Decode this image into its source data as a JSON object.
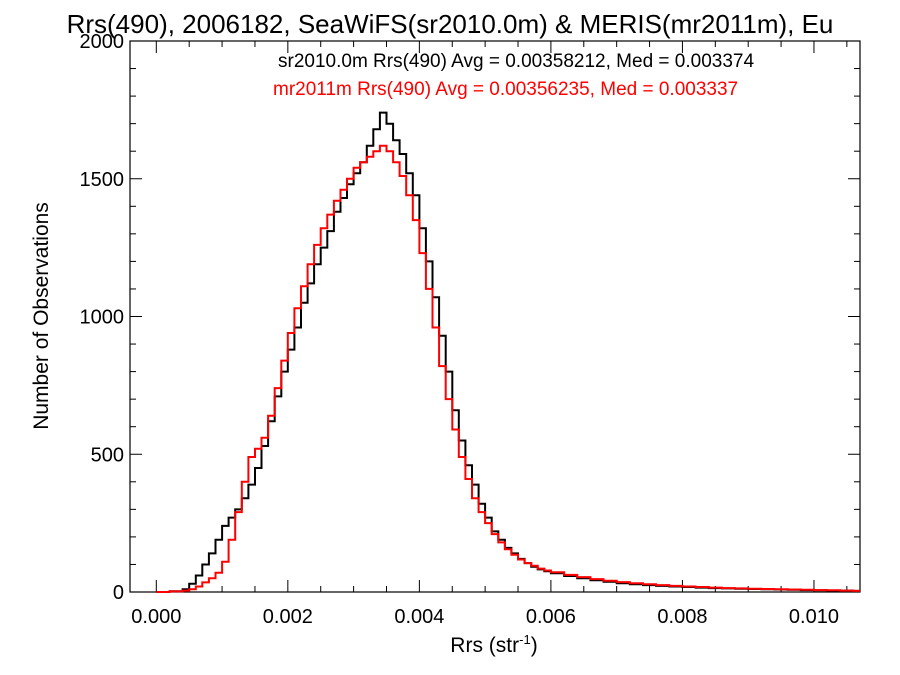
{
  "chart_data": {
    "type": "line",
    "title": "Rrs(490), 2006182, SeaWiFS(sr2010.0m) & MERIS(mr2011m), Eu",
    "xlabel_main": "Rrs (str",
    "xlabel_sup": "-1",
    "xlabel_close": ")",
    "ylabel": "Number of Observations",
    "xlim": [
      -0.0004,
      0.0107
    ],
    "ylim": [
      0,
      2000
    ],
    "x_ticks": [
      0.0,
      0.002,
      0.004,
      0.006,
      0.008,
      0.01
    ],
    "x_tick_labels": [
      "0.000",
      "0.002",
      "0.004",
      "0.006",
      "0.008",
      "0.010"
    ],
    "y_ticks": [
      0,
      500,
      1000,
      1500,
      2000
    ],
    "y_tick_labels": [
      "0",
      "500",
      "1000",
      "1500",
      "2000"
    ],
    "grid": false,
    "series": [
      {
        "name": "sr2010.0m Rrs(490)",
        "color": "#000000",
        "stats_text": "sr2010.0m Rrs(490) Avg = 0.00358212, Med = 0.003374",
        "x": [
          0.0,
          0.0002,
          0.0004,
          0.0005,
          0.0006,
          0.0007,
          0.0008,
          0.0009,
          0.001,
          0.0011,
          0.0012,
          0.0013,
          0.0014,
          0.0015,
          0.0016,
          0.0017,
          0.0018,
          0.0019,
          0.002,
          0.0021,
          0.0022,
          0.0023,
          0.0024,
          0.0025,
          0.0026,
          0.0027,
          0.0028,
          0.0029,
          0.003,
          0.0031,
          0.0032,
          0.0033,
          0.0034,
          0.0035,
          0.0036,
          0.0037,
          0.0038,
          0.0039,
          0.004,
          0.0041,
          0.0042,
          0.0043,
          0.0044,
          0.0045,
          0.0046,
          0.0047,
          0.0048,
          0.0049,
          0.005,
          0.0051,
          0.0052,
          0.0053,
          0.0054,
          0.0055,
          0.0056,
          0.0057,
          0.0058,
          0.0059,
          0.006,
          0.0062,
          0.0064,
          0.0066,
          0.0068,
          0.007,
          0.0072,
          0.0074,
          0.0076,
          0.0078,
          0.008,
          0.0082,
          0.0084,
          0.0086,
          0.0088,
          0.009,
          0.0092,
          0.0094,
          0.0096,
          0.0098,
          0.01,
          0.0102,
          0.0104,
          0.0106
        ],
        "y": [
          0,
          3,
          10,
          30,
          60,
          100,
          140,
          190,
          240,
          270,
          300,
          340,
          390,
          450,
          530,
          620,
          710,
          800,
          880,
          960,
          1050,
          1120,
          1190,
          1250,
          1310,
          1380,
          1430,
          1480,
          1520,
          1560,
          1620,
          1680,
          1740,
          1700,
          1640,
          1590,
          1520,
          1440,
          1320,
          1200,
          1070,
          930,
          800,
          660,
          550,
          460,
          390,
          320,
          270,
          220,
          190,
          160,
          140,
          120,
          105,
          92,
          82,
          75,
          68,
          58,
          50,
          43,
          37,
          32,
          28,
          25,
          22,
          20,
          18,
          16,
          14,
          13,
          12,
          11,
          10,
          9,
          8,
          7,
          6,
          5,
          5,
          4
        ]
      },
      {
        "name": "mr2011m Rrs(490)",
        "color": "#ff0000",
        "stats_text": "mr2011m Rrs(490) Avg = 0.00356235, Med = 0.003337",
        "x": [
          0.0,
          0.0002,
          0.0004,
          0.0005,
          0.0006,
          0.0007,
          0.0008,
          0.0009,
          0.001,
          0.0011,
          0.0012,
          0.0013,
          0.0014,
          0.0015,
          0.0016,
          0.0017,
          0.0018,
          0.0019,
          0.002,
          0.0021,
          0.0022,
          0.0023,
          0.0024,
          0.0025,
          0.0026,
          0.0027,
          0.0028,
          0.0029,
          0.003,
          0.0031,
          0.0032,
          0.0033,
          0.0034,
          0.0035,
          0.0036,
          0.0037,
          0.0038,
          0.0039,
          0.004,
          0.0041,
          0.0042,
          0.0043,
          0.0044,
          0.0045,
          0.0046,
          0.0047,
          0.0048,
          0.0049,
          0.005,
          0.0051,
          0.0052,
          0.0053,
          0.0054,
          0.0055,
          0.0056,
          0.0057,
          0.0058,
          0.0059,
          0.006,
          0.0062,
          0.0064,
          0.0066,
          0.0068,
          0.007,
          0.0072,
          0.0074,
          0.0076,
          0.0078,
          0.008,
          0.0082,
          0.0084,
          0.0086,
          0.0088,
          0.009,
          0.0092,
          0.0094,
          0.0096,
          0.0098,
          0.01,
          0.0102,
          0.0104,
          0.0106
        ],
        "y": [
          0,
          2,
          5,
          10,
          20,
          35,
          50,
          70,
          110,
          190,
          290,
          400,
          490,
          520,
          560,
          640,
          740,
          840,
          940,
          1030,
          1110,
          1190,
          1260,
          1320,
          1370,
          1420,
          1460,
          1500,
          1540,
          1560,
          1580,
          1600,
          1620,
          1600,
          1560,
          1510,
          1440,
          1350,
          1230,
          1100,
          960,
          820,
          700,
          590,
          490,
          410,
          340,
          290,
          250,
          210,
          180,
          155,
          135,
          118,
          105,
          95,
          85,
          78,
          72,
          62,
          54,
          47,
          41,
          36,
          32,
          28,
          25,
          22,
          20,
          18,
          16,
          14,
          13,
          12,
          11,
          10,
          9,
          8,
          7,
          6,
          5,
          4
        ]
      }
    ]
  }
}
